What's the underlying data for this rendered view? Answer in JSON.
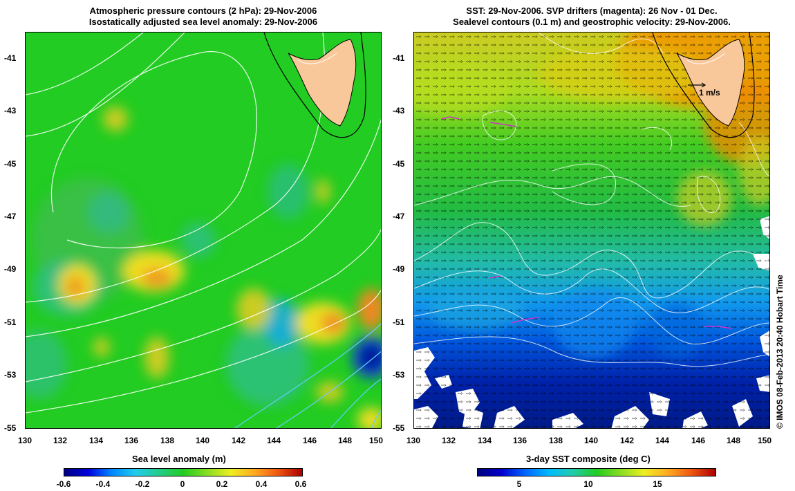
{
  "left_panel": {
    "title_line1": "Atmospheric pressure contours (2 hPa): 29-Nov-2006",
    "title_line2": "Isostatically adjusted sea level anomaly: 29-Nov-2006",
    "y_ticks": [
      "-41",
      "-43",
      "-45",
      "-47",
      "-49",
      "-51",
      "-53",
      "-55"
    ],
    "x_ticks": [
      "130",
      "132",
      "134",
      "136",
      "138",
      "140",
      "142",
      "144",
      "146",
      "148",
      "150"
    ],
    "colorbar_label": "Sea level anomaly (m)",
    "colorbar_ticks": [
      "-0.6",
      "-0.4",
      "-0.2",
      "0",
      "0.2",
      "0.4",
      "0.6"
    ]
  },
  "right_panel": {
    "title_line1": "SST: 29-Nov-2006. SVP drifters (magenta): 26 Nov - 01 Dec.",
    "title_line2": "Sealevel contours (0.1 m) and geostrophic velocity: 29-Nov-2006.",
    "y_ticks": [
      "-41",
      "-43",
      "-45",
      "-47",
      "-49",
      "-51",
      "-53",
      "-55"
    ],
    "x_ticks": [
      "130",
      "132",
      "134",
      "136",
      "138",
      "140",
      "142",
      "144",
      "146",
      "148",
      "150"
    ],
    "scale_label": "1 m/s",
    "colorbar_label": "3-day SST composite (deg C)",
    "colorbar_ticks": [
      "5",
      "10",
      "15"
    ]
  },
  "credit": "© IMOS 08-Feb-2013 20:40 Hobart Time",
  "colors": {
    "land": "#f8c89a",
    "anomaly_background": "#22cc22",
    "sst_cold": "#0022aa",
    "sst_warm": "#ee8800"
  }
}
